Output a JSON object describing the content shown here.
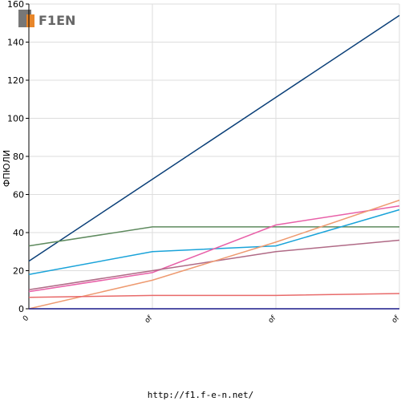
{
  "logo": "F1EN",
  "footer": "http://f1.f-e-n.net/",
  "chart_data": {
    "type": "line",
    "y_label": "ФПЮЛИ",
    "categories": [
      "0",
      "of",
      "of",
      "of"
    ],
    "ylim": [
      0,
      160
    ],
    "yticks": [
      0,
      20,
      40,
      60,
      80,
      100,
      120,
      140,
      160
    ],
    "grid": true,
    "series": [
      {
        "color": "#0a3f78",
        "values": [
          25,
          68,
          111,
          154
        ]
      },
      {
        "color": "#5e8a5e",
        "values": [
          33,
          43,
          43,
          43
        ]
      },
      {
        "color": "#1aa3d9",
        "values": [
          18,
          30,
          33,
          52
        ]
      },
      {
        "color": "#e860a8",
        "values": [
          9,
          19,
          44,
          54
        ]
      },
      {
        "color": "#b06a86",
        "values": [
          10,
          20,
          30,
          36
        ]
      },
      {
        "color": "#ee9a70",
        "values": [
          0,
          15,
          35,
          57
        ]
      },
      {
        "color": "#e86a6a",
        "values": [
          6,
          7,
          7,
          8
        ]
      },
      {
        "color": "#1a1a8a",
        "values": [
          0,
          0,
          0,
          0
        ]
      }
    ]
  }
}
